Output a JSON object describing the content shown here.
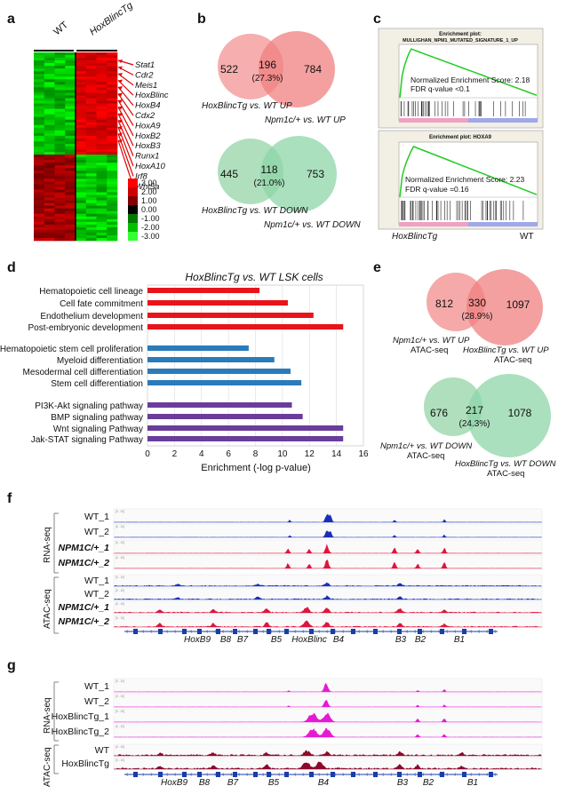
{
  "panels": {
    "a": "a",
    "b": "b",
    "c": "c",
    "d": "d",
    "e": "e",
    "f": "f",
    "g": "g"
  },
  "heatmap": {
    "col_wt": "WT",
    "col_tg": "HoxBlincTg",
    "genes": [
      "Stat1",
      "Cdr2",
      "Meis1",
      "HoxBlinc",
      "HoxB4",
      "Cdx2",
      "HoxA9",
      "HoxB2",
      "HoxB3",
      "Runx1",
      "HoxA10",
      "Irf8",
      "Wnt5a"
    ],
    "scale": [
      "3.00",
      "2.00",
      "1.00",
      "0.00",
      "-1.00",
      "-2.00",
      "-3.00"
    ],
    "scale_colors": [
      "#ff0000",
      "#cc0000",
      "#800000",
      "#000000",
      "#007a00",
      "#00c000",
      "#33ff33"
    ]
  },
  "venn_b": [
    {
      "left": "522",
      "overlap": "196",
      "pct": "(27.3%)",
      "right": "784",
      "label_left": "HoxBlincTg vs. WT UP",
      "label_right": "Npm1c/+ vs. WT UP",
      "color": "#f08080"
    },
    {
      "left": "445",
      "overlap": "118",
      "pct": "(21.0%)",
      "right": "753",
      "label_left": "HoxBlincTg vs. WT DOWN",
      "label_right": "Npm1c/+ vs. WT DOWN",
      "color": "#8ed6a8"
    }
  ],
  "gsea": [
    {
      "title": "Enrichment plot:",
      "subtitle": "MULLIGHAN_NPM1_MUTATED_SIGNATURE_1_UP",
      "nes": "Normalized Enrichment Score: 2.18",
      "fdr": "FDR q-value <0.1"
    },
    {
      "title": "Enrichment plot: HOXA9",
      "subtitle": "",
      "nes": "Normalized Enrichment Score: 2.23",
      "fdr": "FDR q-value =0.16"
    }
  ],
  "gsea_axis": {
    "left": "HoxBlincTg",
    "right": "WT"
  },
  "chart_data": {
    "type": "bar",
    "title": "HoxBlincTg vs. WT LSK cells",
    "xlabel": "Enrichment (-log p-value)",
    "xlim": [
      0,
      16
    ],
    "ticks": [
      "0",
      "2",
      "4",
      "6",
      "8",
      "10",
      "12",
      "14",
      "16"
    ],
    "categories": [
      "Hematopoietic cell lineage",
      "Cell fate commitment",
      "Endothelium development",
      "Post-embryonic development",
      "Hematopoietic stem cell proliferation",
      "Myeloid differentiation",
      "Mesodermal cell differentiation",
      "Stem cell differentiation",
      "PI3K-Akt signaling pathway",
      "BMP signaling pathway",
      "Wnt signaling Pathway",
      "Jak-STAT signaling Pathway"
    ],
    "values": [
      8.3,
      10.4,
      12.3,
      14.5,
      7.5,
      9.4,
      10.6,
      11.4,
      10.7,
      11.5,
      14.5,
      14.5
    ],
    "groups": [
      0,
      0,
      0,
      0,
      1,
      1,
      1,
      1,
      2,
      2,
      2,
      2
    ],
    "colors": [
      "#e8141a",
      "#2b7bba",
      "#6a3d9a"
    ]
  },
  "venn_e": [
    {
      "left": "812",
      "overlap": "330",
      "pct": "(28.9%)",
      "right": "1097",
      "label_left_1": "Npm1c/+ vs. WT UP",
      "label_left_2": "ATAC-seq",
      "label_right_1": "HoxBlincTg vs. WT UP",
      "label_right_2": "ATAC-seq",
      "color": "#f08080"
    },
    {
      "left": "676",
      "overlap": "217",
      "pct": "(24.3%)",
      "right": "1078",
      "label_left_1": "Npm1c/+ vs. WT DOWN",
      "label_left_2": "ATAC-seq",
      "label_right_1": "HoxBlincTg vs. WT DOWN",
      "label_right_2": "ATAC-seq",
      "color": "#8ed6a8"
    }
  ],
  "tracks_f": {
    "group_rna": "RNA-seq",
    "group_atac": "ATAC-seq",
    "rna": [
      "WT_1",
      "WT_2",
      "NPM1C/+_1",
      "NPM1C/+_2"
    ],
    "atac": [
      "WT_1",
      "WT_2",
      "NPM1C/+_1",
      "NPM1C/+_2"
    ],
    "genes": [
      "HoxB9",
      "B8",
      "B7",
      "B5",
      "HoxBlinc",
      "B4",
      "B3",
      "B2",
      "B1"
    ]
  },
  "tracks_g": {
    "group_rna": "RNA-seq",
    "group_atac": "ATAC-seq",
    "rna": [
      "WT_1",
      "WT_2",
      "HoxBlincTg_1",
      "HoxBlincTg_2"
    ],
    "atac": [
      "WT",
      "HoxBlincTg"
    ],
    "genes": [
      "HoxB9",
      "B8",
      "B7",
      "B5",
      "B4",
      "B3",
      "B2",
      "B1"
    ]
  }
}
